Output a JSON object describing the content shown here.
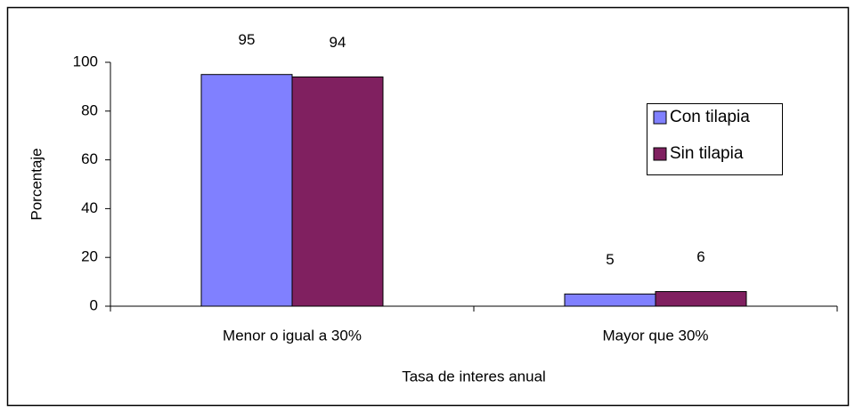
{
  "chart_data": {
    "type": "bar",
    "xlabel": "Tasa de interes anual",
    "ylabel": "Porcentaje",
    "categories": [
      "Menor o igual a 30%",
      "Mayor que 30%"
    ],
    "series": [
      {
        "name": "Con tilapia",
        "color": "#8080ff",
        "values": [
          95,
          5
        ]
      },
      {
        "name": "Sin tilapia",
        "color": "#802060",
        "values": [
          94,
          6
        ]
      }
    ],
    "ylim": [
      0,
      100
    ],
    "yticks": [
      0,
      20,
      40,
      60,
      80,
      100
    ],
    "legend": "right",
    "grid": false
  }
}
